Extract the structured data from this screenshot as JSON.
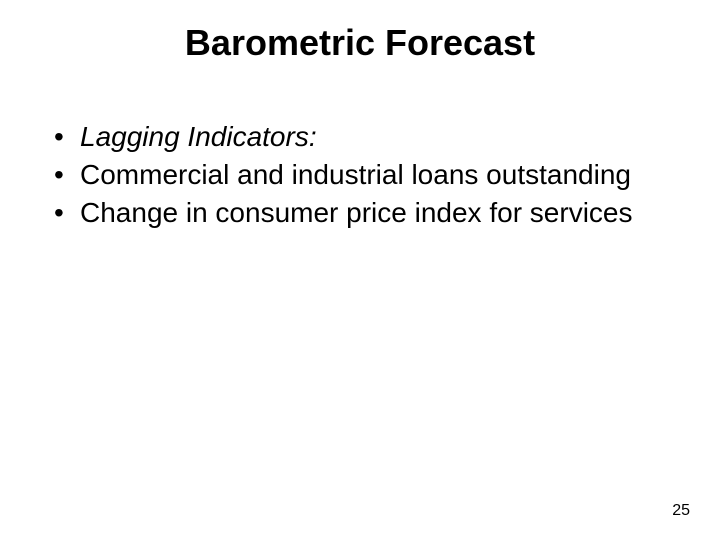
{
  "slide": {
    "title": "Barometric Forecast",
    "title_fontsize": 36,
    "title_fontweight": "bold",
    "title_color": "#000000",
    "body_fontsize": 28,
    "body_lineheight": 1.22,
    "body_color": "#000000",
    "bullets": [
      {
        "text": "Lagging Indicators:",
        "italic": true
      },
      {
        "text": "Commercial and industrial loans outstanding",
        "italic": false
      },
      {
        "text": "Change in consumer price index for services",
        "italic": false
      }
    ],
    "page_number": "25",
    "page_number_fontsize": 16,
    "page_number_color": "#000000",
    "background_color": "#ffffff"
  }
}
